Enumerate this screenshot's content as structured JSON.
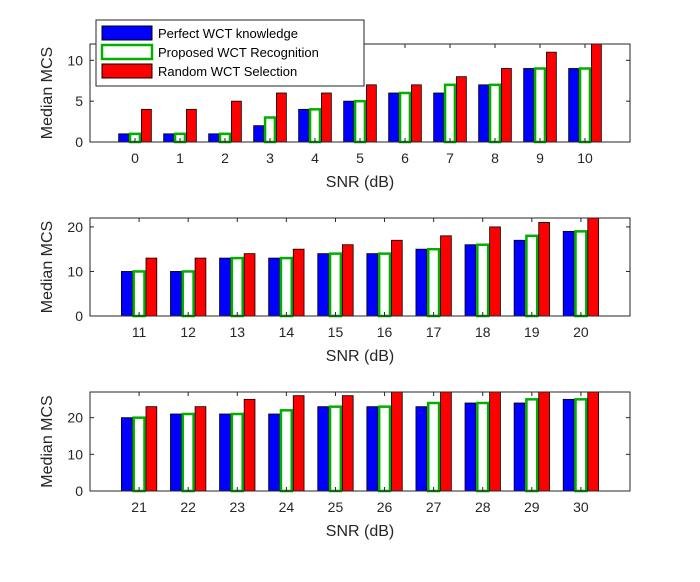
{
  "chart_data": [
    {
      "type": "bar",
      "panel": "top",
      "categories": [
        "0",
        "1",
        "2",
        "3",
        "4",
        "5",
        "6",
        "7",
        "8",
        "9",
        "10"
      ],
      "series": [
        {
          "name": "Perfect WCT knowledge",
          "values": [
            1,
            1,
            1,
            2,
            4,
            5,
            6,
            6,
            7,
            9,
            9
          ]
        },
        {
          "name": "Proposed WCT Recognition",
          "values": [
            1,
            1,
            1,
            3,
            4,
            5,
            6,
            7,
            7,
            9,
            9
          ]
        },
        {
          "name": "Random WCT Selection",
          "values": [
            4,
            4,
            5,
            6,
            6,
            7,
            7,
            8,
            9,
            11,
            12
          ]
        }
      ],
      "xlabel": "SNR (dB)",
      "ylabel": "Median MCS",
      "ylim": [
        0,
        12
      ],
      "yticks": [
        "0",
        "5",
        "10"
      ]
    },
    {
      "type": "bar",
      "panel": "middle",
      "categories": [
        "11",
        "12",
        "13",
        "14",
        "15",
        "16",
        "17",
        "18",
        "19",
        "20"
      ],
      "series": [
        {
          "name": "Perfect WCT knowledge",
          "values": [
            10,
            10,
            13,
            13,
            14,
            14,
            15,
            16,
            17,
            19
          ]
        },
        {
          "name": "Proposed WCT Recognition",
          "values": [
            10,
            10,
            13,
            13,
            14,
            14,
            15,
            16,
            18,
            19
          ]
        },
        {
          "name": "Random WCT Selection",
          "values": [
            13,
            13,
            14,
            15,
            16,
            17,
            18,
            20,
            21,
            22
          ]
        }
      ],
      "xlabel": "SNR (dB)",
      "ylabel": "Median MCS",
      "ylim": [
        0,
        22
      ],
      "yticks": [
        "0",
        "10",
        "20"
      ]
    },
    {
      "type": "bar",
      "panel": "bottom",
      "categories": [
        "21",
        "22",
        "23",
        "24",
        "25",
        "26",
        "27",
        "28",
        "29",
        "30"
      ],
      "series": [
        {
          "name": "Perfect WCT knowledge",
          "values": [
            20,
            21,
            21,
            21,
            23,
            23,
            23,
            24,
            24,
            25
          ]
        },
        {
          "name": "Proposed WCT Recognition",
          "values": [
            20,
            21,
            21,
            22,
            23,
            23,
            24,
            24,
            25,
            25
          ]
        },
        {
          "name": "Random WCT Selection",
          "values": [
            23,
            23,
            25,
            26,
            26,
            27,
            27,
            27,
            27,
            27
          ]
        }
      ],
      "xlabel": "SNR (dB)",
      "ylabel": "Median MCS",
      "ylim": [
        0,
        27
      ],
      "yticks": [
        "0",
        "10",
        "20"
      ]
    }
  ],
  "legend": {
    "entries": [
      "Perfect WCT knowledge",
      "Proposed WCT Recognition",
      "Random WCT Selection"
    ],
    "placement": "top-left"
  },
  "colors": {
    "perfect_fill": "#0000ff",
    "perfect_edge": "#000000",
    "proposed_fill": "#ffffff",
    "proposed_edge": "#00b000",
    "random_fill": "#ff0000",
    "random_edge": "#000000",
    "axis": "#262626",
    "background": "#ffffff"
  }
}
